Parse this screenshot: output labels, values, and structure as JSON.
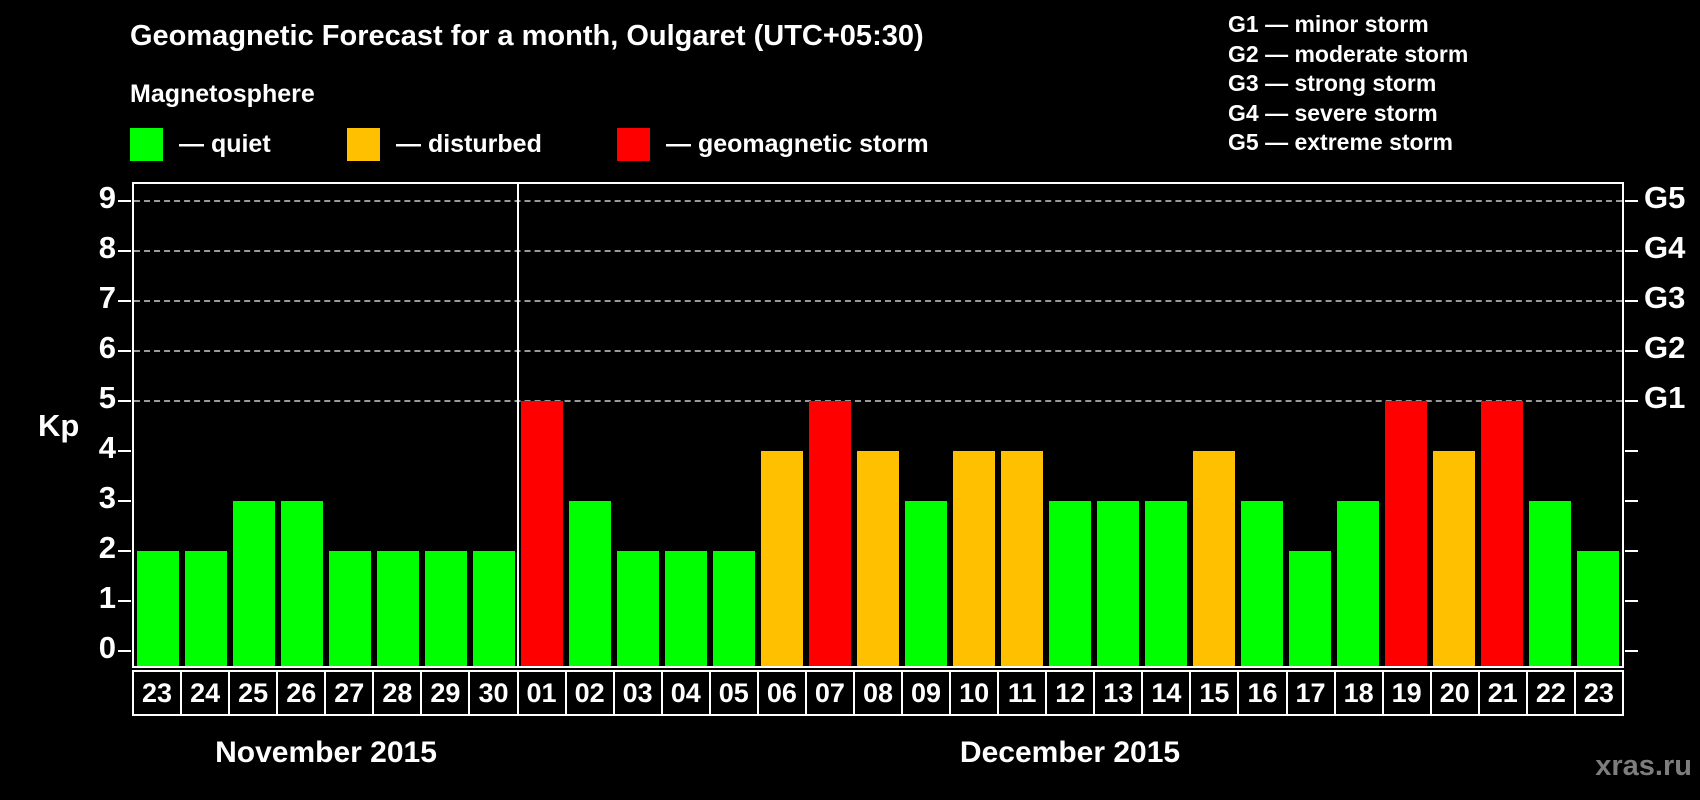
{
  "title": "Geomagnetic Forecast for a month, Oulgaret (UTC+05:30)",
  "subtitle": "Magnetosphere",
  "kp_axis_label": "Kp",
  "watermark": "xras.ru",
  "colors": {
    "quiet": "#00ff00",
    "disturbed": "#ffc000",
    "storm": "#ff0000",
    "background": "#000000",
    "axis": "#ffffff",
    "grid": "#9a9a9a",
    "watermark": "#7d7d7d"
  },
  "legend": {
    "items": [
      {
        "status": "quiet",
        "label": "— quiet"
      },
      {
        "status": "disturbed",
        "label": "— disturbed"
      },
      {
        "status": "storm",
        "label": "— geomagnetic storm"
      }
    ]
  },
  "g_legend": {
    "items": [
      "G1 — minor storm",
      "G2 — moderate storm",
      "G3 — strong storm",
      "G4 — severe storm",
      "G5 — extreme storm"
    ]
  },
  "chart_data": {
    "type": "bar",
    "ylabel": "Kp",
    "ylim": [
      0,
      9
    ],
    "y_ticks": [
      0,
      1,
      2,
      3,
      4,
      5,
      6,
      7,
      8,
      9
    ],
    "grid_levels": [
      5,
      6,
      7,
      8,
      9
    ],
    "grid": "dashed-at-storm-levels",
    "legend_position": "top",
    "right_axis_labels": [
      {
        "kp": 5,
        "label": "G1"
      },
      {
        "kp": 6,
        "label": "G2"
      },
      {
        "kp": 7,
        "label": "G3"
      },
      {
        "kp": 8,
        "label": "G4"
      },
      {
        "kp": 9,
        "label": "G5"
      }
    ],
    "months": [
      {
        "label": "November 2015",
        "days": [
          {
            "date": "23",
            "kp": 2,
            "status": "quiet"
          },
          {
            "date": "24",
            "kp": 2,
            "status": "quiet"
          },
          {
            "date": "25",
            "kp": 3,
            "status": "quiet"
          },
          {
            "date": "26",
            "kp": 3,
            "status": "quiet"
          },
          {
            "date": "27",
            "kp": 2,
            "status": "quiet"
          },
          {
            "date": "28",
            "kp": 2,
            "status": "quiet"
          },
          {
            "date": "29",
            "kp": 2,
            "status": "quiet"
          },
          {
            "date": "30",
            "kp": 2,
            "status": "quiet"
          }
        ]
      },
      {
        "label": "December 2015",
        "days": [
          {
            "date": "01",
            "kp": 5,
            "status": "storm"
          },
          {
            "date": "02",
            "kp": 3,
            "status": "quiet"
          },
          {
            "date": "03",
            "kp": 2,
            "status": "quiet"
          },
          {
            "date": "04",
            "kp": 2,
            "status": "quiet"
          },
          {
            "date": "05",
            "kp": 2,
            "status": "quiet"
          },
          {
            "date": "06",
            "kp": 4,
            "status": "disturbed"
          },
          {
            "date": "07",
            "kp": 5,
            "status": "storm"
          },
          {
            "date": "08",
            "kp": 4,
            "status": "disturbed"
          },
          {
            "date": "09",
            "kp": 3,
            "status": "quiet"
          },
          {
            "date": "10",
            "kp": 4,
            "status": "disturbed"
          },
          {
            "date": "11",
            "kp": 4,
            "status": "disturbed"
          },
          {
            "date": "12",
            "kp": 3,
            "status": "quiet"
          },
          {
            "date": "13",
            "kp": 3,
            "status": "quiet"
          },
          {
            "date": "14",
            "kp": 3,
            "status": "quiet"
          },
          {
            "date": "15",
            "kp": 4,
            "status": "disturbed"
          },
          {
            "date": "16",
            "kp": 3,
            "status": "quiet"
          },
          {
            "date": "17",
            "kp": 2,
            "status": "quiet"
          },
          {
            "date": "18",
            "kp": 3,
            "status": "quiet"
          },
          {
            "date": "19",
            "kp": 5,
            "status": "storm"
          },
          {
            "date": "20",
            "kp": 4,
            "status": "disturbed"
          },
          {
            "date": "21",
            "kp": 5,
            "status": "storm"
          },
          {
            "date": "22",
            "kp": 3,
            "status": "quiet"
          },
          {
            "date": "23",
            "kp": 2,
            "status": "quiet"
          }
        ]
      }
    ]
  }
}
